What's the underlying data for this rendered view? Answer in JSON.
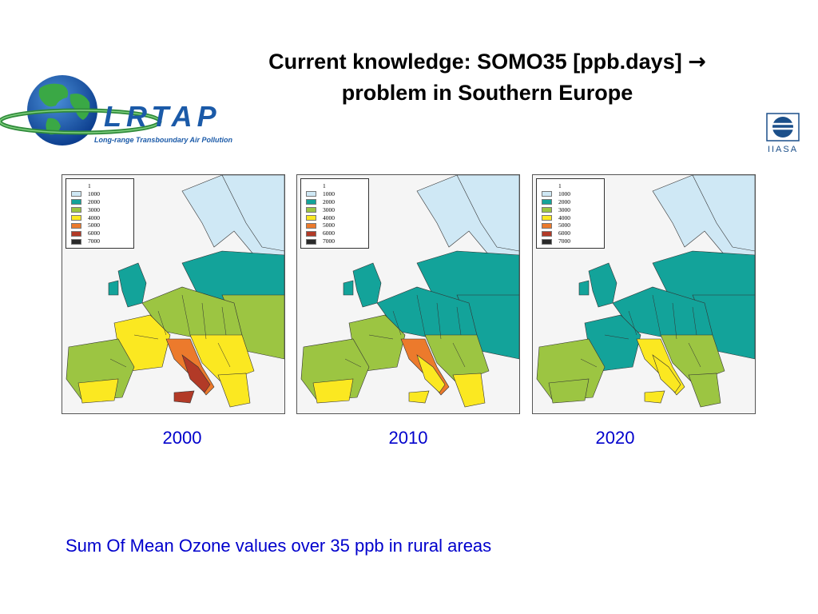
{
  "title": {
    "line1": "Current knowledge: SOMO35 [ppb.days]",
    "arrow": "→",
    "line2": "problem in Southern Europe"
  },
  "logos": {
    "lrtap_text": "LRTAP",
    "lrtap_subtitle": "Long-range Transboundary Air Pollution",
    "iiasa_text": "IIASA"
  },
  "legend": {
    "levels": [
      {
        "label": "1",
        "color": "#ffffff"
      },
      {
        "label": "1000",
        "color": "#cfe8f5"
      },
      {
        "label": "2000",
        "color": "#13a39a"
      },
      {
        "label": "3000",
        "color": "#9cc542"
      },
      {
        "label": "4000",
        "color": "#fbe821"
      },
      {
        "label": "5000",
        "color": "#ec7a2c"
      },
      {
        "label": "6000",
        "color": "#b23a27"
      },
      {
        "label": "7000",
        "color": "#2a2a2a"
      }
    ]
  },
  "maps": [
    {
      "year": "2000"
    },
    {
      "year": "2010"
    },
    {
      "year": "2020"
    }
  ],
  "caption": "Sum Of Mean Ozone values over 35 ppb in rural areas"
}
